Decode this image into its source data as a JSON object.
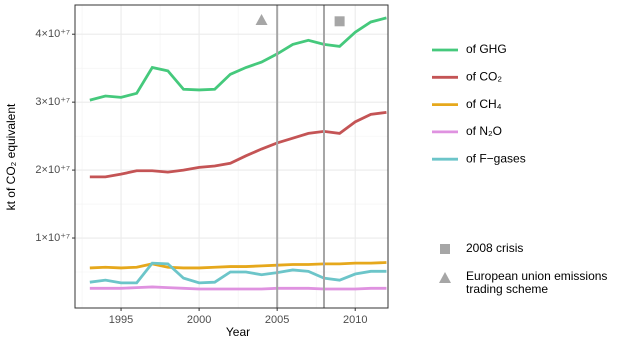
{
  "chart_data": {
    "type": "line",
    "x_label": "Year",
    "y_label": "kt of CO₂ equivalent",
    "x": [
      1993,
      1994,
      1995,
      1996,
      1997,
      1998,
      1999,
      2000,
      2001,
      2002,
      2003,
      2004,
      2005,
      2006,
      2007,
      2008,
      2009,
      2010,
      2011,
      2012
    ],
    "series": [
      {
        "name": "of GHG",
        "color": "#45c97c",
        "values": [
          30300000,
          30900000,
          30700000,
          31300000,
          35100000,
          34600000,
          31900000,
          31800000,
          31900000,
          34100000,
          35100000,
          35900000,
          37100000,
          38500000,
          39100000,
          38500000,
          38200000,
          40300000,
          41800000,
          42400000
        ]
      },
      {
        "name": "of CO₂",
        "color": "#c45455",
        "values": [
          19000000,
          19000000,
          19400000,
          19900000,
          19900000,
          19700000,
          20000000,
          20400000,
          20600000,
          21000000,
          22100000,
          23100000,
          24000000,
          24700000,
          25400000,
          25700000,
          25400000,
          27100000,
          28200000,
          28500000
        ]
      },
      {
        "name": "of CH₄",
        "color": "#e6a81c",
        "values": [
          5600000,
          5700000,
          5600000,
          5700000,
          6200000,
          5700000,
          5600000,
          5600000,
          5700000,
          5800000,
          5800000,
          5900000,
          6000000,
          6100000,
          6100000,
          6200000,
          6200000,
          6300000,
          6300000,
          6400000
        ]
      },
      {
        "name": "of N₂O",
        "color": "#df92e0",
        "values": [
          2600000,
          2600000,
          2600000,
          2700000,
          2800000,
          2700000,
          2600000,
          2500000,
          2500000,
          2500000,
          2500000,
          2500000,
          2600000,
          2600000,
          2600000,
          2500000,
          2500000,
          2500000,
          2600000,
          2600000
        ]
      },
      {
        "name": "of F−gases",
        "color": "#6cc5c9",
        "values": [
          3500000,
          3800000,
          3400000,
          3400000,
          6300000,
          6200000,
          4100000,
          3400000,
          3500000,
          5000000,
          5000000,
          4600000,
          4900000,
          5300000,
          5100000,
          4100000,
          3800000,
          4700000,
          5100000,
          5100000
        ]
      }
    ],
    "events": [
      {
        "name": "2008 crisis",
        "shape": "square",
        "color": "#a6a6a6",
        "x": 2009,
        "y": 41900000,
        "line": 2008
      },
      {
        "name": "European union emissions trading scheme",
        "shape": "triangle",
        "color": "#a6a6a6",
        "x": 2004,
        "y": 42100000,
        "line": 2005
      }
    ],
    "xlim": [
      1992.05,
      2012.1
    ],
    "ylim": [
      -300000,
      44300000
    ],
    "xticks": [
      1995,
      2000,
      2005,
      2010
    ],
    "yticks": [
      {
        "value": 10000000,
        "label": "1×10⁺⁷"
      },
      {
        "value": 20000000,
        "label": "2×10⁺⁷"
      },
      {
        "value": 30000000,
        "label": "3×10⁺⁷"
      },
      {
        "value": 40000000,
        "label": "4×10⁺⁷"
      }
    ],
    "grid": true,
    "minor_grid": true,
    "legend": "right"
  }
}
